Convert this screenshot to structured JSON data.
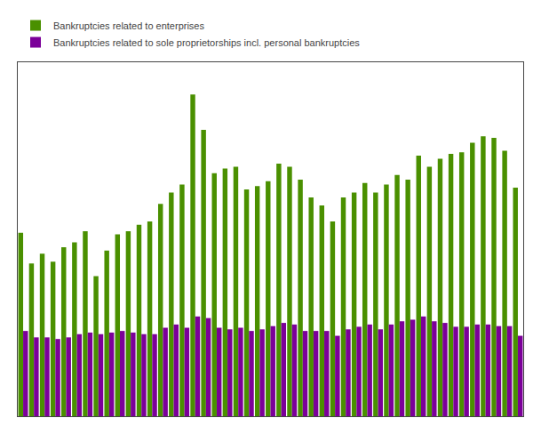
{
  "chart_data": {
    "type": "bar",
    "categories": [
      null,
      null,
      null,
      null,
      null,
      null,
      null,
      null,
      null,
      null,
      null,
      null,
      null,
      null,
      null,
      null,
      null,
      null,
      null,
      null,
      null,
      null,
      null,
      null,
      null,
      null,
      null,
      null,
      null,
      null,
      null,
      null,
      null,
      null,
      null,
      null,
      null,
      null,
      null,
      null,
      null,
      null,
      null,
      null,
      null,
      null,
      null
    ],
    "series": [
      {
        "name": "Bankruptcies related to enterprises",
        "color": "#4a9000",
        "values": [
          570,
          475,
          505,
          480,
          525,
          540,
          575,
          435,
          515,
          565,
          575,
          595,
          605,
          660,
          695,
          720,
          1000,
          890,
          755,
          770,
          775,
          705,
          715,
          730,
          785,
          775,
          735,
          680,
          655,
          605,
          680,
          695,
          725,
          695,
          720,
          750,
          735,
          810,
          775,
          800,
          815,
          820,
          850,
          870,
          865,
          825,
          710
        ]
      },
      {
        "name": "Bankruptcies related to sole proprietorships incl. personal bankruptcies",
        "color": "#7b0099",
        "values": [
          265,
          245,
          245,
          240,
          245,
          255,
          260,
          255,
          260,
          265,
          260,
          255,
          255,
          275,
          285,
          275,
          310,
          305,
          275,
          270,
          275,
          265,
          270,
          280,
          290,
          285,
          265,
          265,
          265,
          250,
          270,
          278,
          285,
          270,
          285,
          295,
          300,
          310,
          295,
          290,
          278,
          278,
          285,
          285,
          280,
          280,
          250
        ]
      }
    ],
    "ylim": [
      0,
      1100
    ],
    "yticks": [],
    "grid": false,
    "tick_labels": false,
    "legend": "upper left"
  }
}
